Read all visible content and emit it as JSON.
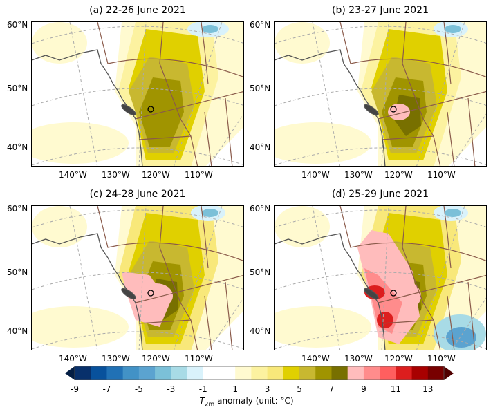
{
  "panels": [
    {
      "title": "(a) 22-26 June 2021",
      "level": 1
    },
    {
      "title": "(b) 23-27 June 2021",
      "level": 2
    },
    {
      "title": "(c) 24-28 June 2021",
      "level": 3
    },
    {
      "title": "(d) 25-29 June 2021",
      "level": 4
    }
  ],
  "lat_labels": [
    "60°N",
    "50°N",
    "40°N"
  ],
  "lon_labels": [
    "140°W",
    "130°W",
    "120°W",
    "110°W"
  ],
  "colorbar": {
    "ticks": [
      "-9",
      "-7",
      "-5",
      "-3",
      "-1",
      "1",
      "3",
      "5",
      "7",
      "9",
      "11",
      "13"
    ],
    "label": "T2m anomaly (unit: °C)",
    "label_var": "T",
    "label_sub": "2m",
    "label_rest": " anomaly (unit: °C)",
    "colors": [
      "#08306b",
      "#08519c",
      "#2171b5",
      "#4292c6",
      "#5ba3d0",
      "#7bc0d8",
      "#a8dbe6",
      "#d9f2fb",
      "#ffffff",
      "#ffffff",
      "#fffad0",
      "#fcf2a0",
      "#f8e87a",
      "#e0d000",
      "#c8b830",
      "#a09400",
      "#787000",
      "#ffbcbc",
      "#ff8c8c",
      "#ff5f5f",
      "#dc1e1e",
      "#a80000",
      "#780000"
    ],
    "under_color": "#041e44",
    "over_color": "#500000"
  }
}
